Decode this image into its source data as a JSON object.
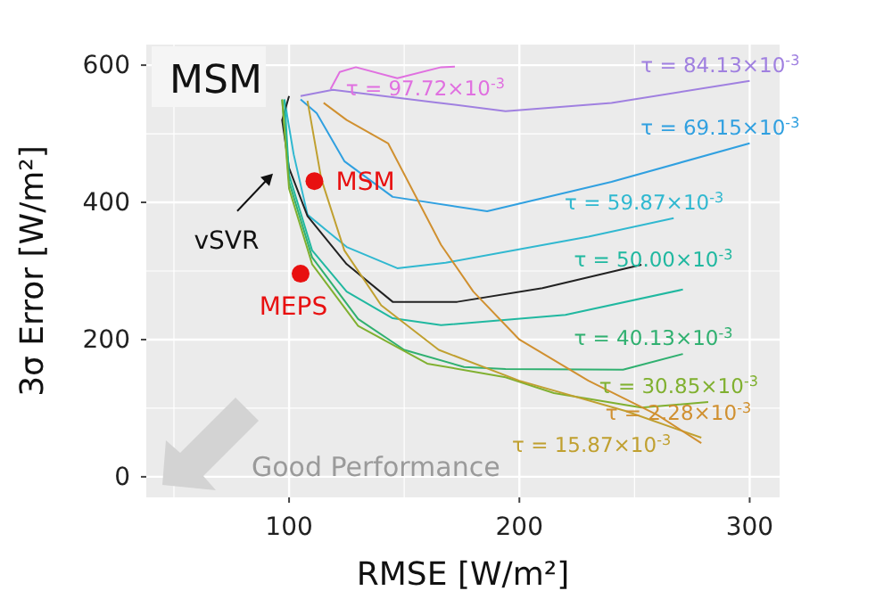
{
  "chart_data": {
    "type": "line",
    "title": "MSM",
    "xlabel": "RMSE [W/m²]",
    "ylabel": "3σ Error [W/m²]",
    "xlim": [
      38,
      313
    ],
    "ylim": [
      -30,
      630
    ],
    "xticks": [
      100,
      200,
      300
    ],
    "yticks": [
      0,
      200,
      400,
      600
    ],
    "grid": true,
    "marker": "none",
    "line_style": "solid",
    "annotations": [
      "vSVR",
      "Good Performance"
    ],
    "series": [
      {
        "name": "τ = 97.72×10$^{-3}$",
        "color": "#e070e0",
        "x": [
          118,
          122,
          129,
          147,
          166,
          172
        ],
        "values": [
          565,
          590,
          597,
          581,
          597,
          598
        ]
      },
      {
        "name": "τ = 84.13×10$^{-3}$",
        "color": "#a080e0",
        "x": [
          105,
          119,
          163,
          194,
          240,
          300
        ],
        "values": [
          555,
          564,
          546,
          533,
          545,
          577
        ]
      },
      {
        "name": "τ = 69.15×10$^{-3}$",
        "color": "#30a0e0",
        "x": [
          105,
          112,
          124,
          145,
          186,
          240,
          300
        ],
        "values": [
          550,
          530,
          460,
          408,
          387,
          430,
          486
        ]
      },
      {
        "name": "τ = 59.87×10$^{-3}$",
        "color": "#30b8d0",
        "x": [
          98,
          102,
          108,
          125,
          147,
          168,
          230,
          267
        ],
        "values": [
          550,
          470,
          382,
          335,
          304,
          312,
          350,
          377
        ]
      },
      {
        "name": null,
        "color": "#222222",
        "x": [
          100,
          97,
          100,
          108,
          125,
          145,
          173,
          210,
          253
        ],
        "values": [
          555,
          520,
          450,
          380,
          310,
          255,
          255,
          275,
          309
        ]
      },
      {
        "name": "τ = 50.00×10$^{-3}$",
        "color": "#20b8a0",
        "x": [
          98,
          100,
          110,
          125,
          145,
          166,
          220,
          271
        ],
        "values": [
          550,
          440,
          330,
          270,
          231,
          221,
          236,
          273
        ]
      },
      {
        "name": "τ = 40.13×10$^{-3}$",
        "color": "#30b070",
        "x": [
          97,
          100,
          110,
          130,
          150,
          176,
          194,
          245,
          271
        ],
        "values": [
          550,
          430,
          320,
          230,
          185,
          160,
          157,
          156,
          179
        ]
      },
      {
        "name": "τ = 30.85×10$^{-3}$",
        "color": "#80b030",
        "x": [
          97,
          100,
          110,
          130,
          160,
          194,
          215,
          253,
          282
        ],
        "values": [
          550,
          420,
          310,
          220,
          165,
          145,
          122,
          101,
          109
        ]
      },
      {
        "name": "τ = 15.87×10$^{-3}$",
        "color": "#c0a030",
        "x": [
          108,
          114,
          124,
          140,
          165,
          200,
          246,
          279
        ],
        "values": [
          548,
          434,
          330,
          250,
          185,
          140,
          96,
          57
        ]
      },
      {
        "name": "τ = 2.28×10$^{-3}$",
        "color": "#d09030",
        "x": [
          115,
          125,
          143,
          166,
          180,
          200,
          230,
          260,
          279
        ],
        "values": [
          545,
          520,
          486,
          338,
          270,
          200,
          140,
          90,
          49
        ]
      },
      {
        "name": "MSM",
        "type": "scatter",
        "marker": "circle",
        "color": "#e81010",
        "x": [
          111
        ],
        "values": [
          431
        ]
      },
      {
        "name": "MEPS",
        "type": "scatter",
        "marker": "circle",
        "color": "#e81010",
        "x": [
          105
        ],
        "values": [
          296
        ]
      }
    ]
  }
}
